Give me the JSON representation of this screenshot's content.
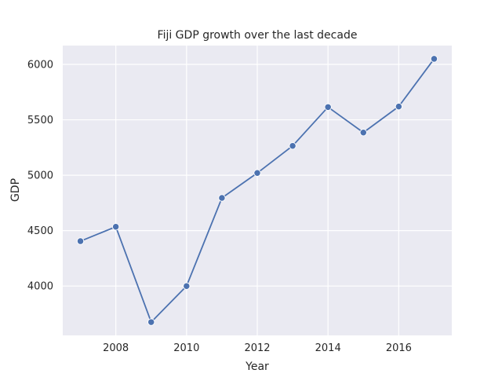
{
  "chart_data": {
    "type": "line",
    "title": "Fiji GDP growth over the last decade",
    "xlabel": "Year",
    "ylabel": "GDP",
    "x": [
      2007,
      2008,
      2009,
      2010,
      2011,
      2012,
      2013,
      2014,
      2015,
      2016,
      2017
    ],
    "series": [
      {
        "values": [
          4405,
          4535,
          3675,
          4000,
          4795,
          5020,
          5265,
          5615,
          5385,
          5620,
          6050
        ]
      }
    ],
    "xlim": [
      2006.5,
      2017.5
    ],
    "ylim": [
      3555,
      6170
    ],
    "x_ticks": [
      2008,
      2010,
      2012,
      2014,
      2016
    ],
    "y_ticks": [
      4000,
      4500,
      5000,
      5500,
      6000
    ],
    "grid": true,
    "colors": {
      "plot_background": "#eaeaf2",
      "line": "#4c72b0",
      "grid": "#ffffff"
    }
  }
}
